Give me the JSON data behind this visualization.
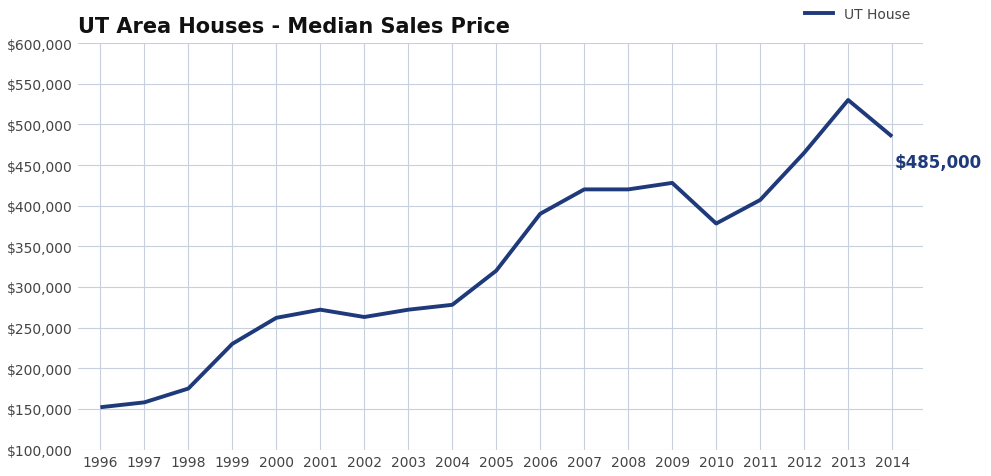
{
  "title": "UT Area Houses - Median Sales Price",
  "legend_label": "UT House",
  "line_color": "#1f3a7a",
  "background_color": "#ffffff",
  "grid_color": "#c8d0de",
  "annotation_text": "$485,000",
  "annotation_color": "#1f3a7a",
  "years": [
    1996,
    1997,
    1998,
    1999,
    2000,
    2001,
    2002,
    2003,
    2004,
    2005,
    2006,
    2007,
    2008,
    2009,
    2010,
    2011,
    2012,
    2013,
    2014
  ],
  "values": [
    152000,
    158000,
    175000,
    230000,
    262000,
    272000,
    263000,
    272000,
    278000,
    320000,
    390000,
    420000,
    420000,
    428000,
    378000,
    407000,
    465000,
    530000,
    485000
  ],
  "ylim_min": 100000,
  "ylim_max": 600000,
  "ytick_step": 50000,
  "line_width": 2.8,
  "title_fontsize": 15,
  "tick_fontsize": 10,
  "legend_fontsize": 10,
  "annotation_fontsize": 12,
  "title_color": "#111111",
  "tick_color": "#444444",
  "legend_text_color": "#444444"
}
